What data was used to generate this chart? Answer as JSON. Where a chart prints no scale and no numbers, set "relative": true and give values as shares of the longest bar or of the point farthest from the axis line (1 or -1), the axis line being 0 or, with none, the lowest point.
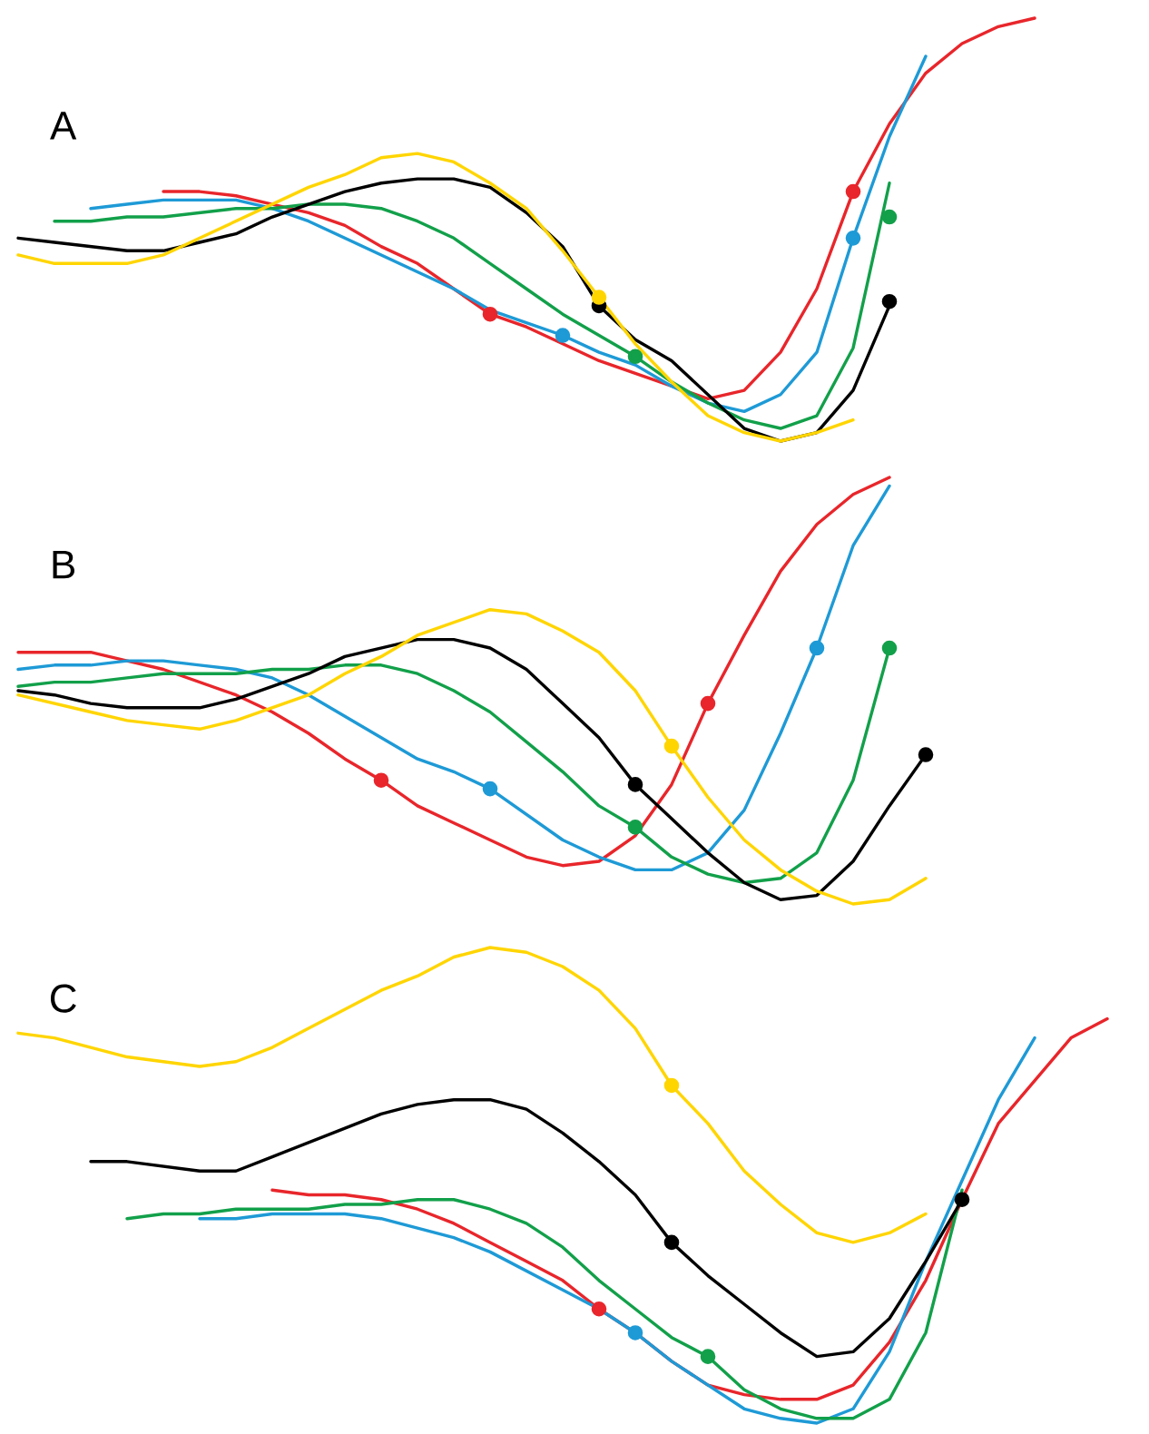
{
  "chart_data": [
    {
      "type": "line",
      "title": "A",
      "relative": true,
      "categories": [
        null,
        null,
        null,
        null,
        null,
        null,
        null,
        null,
        null,
        null,
        null,
        null,
        null,
        null,
        null,
        null,
        null,
        null,
        null,
        null,
        null,
        null,
        null,
        null,
        null,
        null,
        null,
        null,
        null,
        null,
        null,
        null
      ],
      "series": [
        {
          "color": "#e8262b",
          "values": [
            null,
            null,
            null,
            null,
            0.59,
            0.59,
            0.58,
            0.56,
            0.54,
            0.51,
            0.46,
            0.42,
            0.36,
            0.3,
            0.27,
            0.23,
            0.19,
            0.16,
            0.13,
            0.1,
            0.12,
            0.21,
            0.36,
            0.59,
            0.75,
            0.87,
            0.94,
            0.98,
            1.0,
            null,
            null,
            null
          ]
        },
        {
          "color": "#1e9ad6",
          "values": [
            null,
            null,
            0.55,
            0.56,
            0.57,
            0.57,
            0.57,
            0.55,
            0.52,
            0.48,
            0.44,
            0.4,
            0.36,
            0.31,
            0.28,
            0.25,
            0.21,
            0.18,
            0.13,
            0.09,
            0.07,
            0.11,
            0.21,
            0.48,
            0.72,
            0.91,
            null,
            null,
            null,
            null,
            null,
            null
          ]
        },
        {
          "color": "#12a04a",
          "values": [
            null,
            0.52,
            0.52,
            0.53,
            0.53,
            0.54,
            0.55,
            0.55,
            0.56,
            0.56,
            0.55,
            0.52,
            0.48,
            0.42,
            0.36,
            0.3,
            0.25,
            0.2,
            0.14,
            0.09,
            0.05,
            0.03,
            0.06,
            0.22,
            0.61,
            null,
            null,
            null,
            null,
            null,
            null,
            null
          ]
        },
        {
          "color": "#000000",
          "values": [
            0.48,
            0.47,
            0.46,
            0.45,
            0.45,
            0.47,
            0.49,
            0.53,
            0.56,
            0.59,
            0.61,
            0.62,
            0.62,
            0.6,
            0.54,
            0.46,
            0.32,
            0.24,
            0.19,
            0.11,
            0.03,
            0.0,
            0.02,
            0.12,
            0.32,
            null,
            null,
            null,
            null,
            null,
            null,
            null
          ]
        },
        {
          "color": "#ffd500",
          "values": [
            0.44,
            0.42,
            0.42,
            0.42,
            0.44,
            0.48,
            0.52,
            0.56,
            0.6,
            0.63,
            0.67,
            0.68,
            0.66,
            0.61,
            0.55,
            0.45,
            0.34,
            0.23,
            0.14,
            0.06,
            0.02,
            0.0,
            0.02,
            0.05,
            null,
            null,
            null,
            null,
            null,
            null,
            null,
            null
          ]
        },
        {
          "marker": "circle",
          "color": "#e8262b",
          "values": [
            null,
            null,
            null,
            null,
            null,
            null,
            null,
            null,
            null,
            null,
            null,
            null,
            null,
            0.3,
            null,
            null,
            null,
            null,
            null,
            null,
            null,
            null,
            null,
            null,
            null,
            null,
            null,
            null,
            null,
            null,
            null,
            null
          ]
        },
        {
          "marker": "circle",
          "color": "#e8262b",
          "values": [
            null,
            null,
            null,
            null,
            null,
            null,
            null,
            null,
            null,
            null,
            null,
            null,
            null,
            null,
            null,
            null,
            null,
            null,
            null,
            null,
            null,
            null,
            null,
            0.59,
            null,
            null,
            null,
            null,
            null,
            null,
            null,
            null
          ]
        },
        {
          "marker": "circle",
          "color": "#1e9ad6",
          "values": [
            null,
            null,
            null,
            null,
            null,
            null,
            null,
            null,
            null,
            null,
            null,
            null,
            null,
            null,
            null,
            0.25,
            null,
            null,
            null,
            null,
            null,
            null,
            null,
            null,
            null,
            null,
            null,
            null,
            null,
            null,
            null,
            null
          ]
        },
        {
          "marker": "circle",
          "color": "#1e9ad6",
          "values": [
            null,
            null,
            null,
            null,
            null,
            null,
            null,
            null,
            null,
            null,
            null,
            null,
            null,
            null,
            null,
            null,
            null,
            null,
            null,
            null,
            null,
            null,
            null,
            0.48,
            null,
            null,
            null,
            null,
            null,
            null,
            null,
            null
          ]
        },
        {
          "marker": "circle",
          "color": "#12a04a",
          "values": [
            null,
            null,
            null,
            null,
            null,
            null,
            null,
            null,
            null,
            null,
            null,
            null,
            null,
            null,
            null,
            null,
            null,
            0.2,
            null,
            null,
            null,
            null,
            null,
            null,
            null,
            null,
            null,
            null,
            null,
            null,
            null,
            null
          ]
        },
        {
          "marker": "circle",
          "color": "#12a04a",
          "values": [
            null,
            null,
            null,
            null,
            null,
            null,
            null,
            null,
            null,
            null,
            null,
            null,
            null,
            null,
            null,
            null,
            null,
            null,
            null,
            null,
            null,
            null,
            null,
            null,
            0.53,
            null,
            null,
            null,
            null,
            null,
            null,
            null
          ]
        },
        {
          "marker": "circle",
          "color": "#000000",
          "values": [
            null,
            null,
            null,
            null,
            null,
            null,
            null,
            null,
            null,
            null,
            null,
            null,
            null,
            null,
            null,
            null,
            0.32,
            null,
            null,
            null,
            null,
            null,
            null,
            null,
            null,
            null,
            null,
            null,
            null,
            null,
            null,
            null
          ]
        },
        {
          "marker": "circle",
          "color": "#000000",
          "values": [
            null,
            null,
            null,
            null,
            null,
            null,
            null,
            null,
            null,
            null,
            null,
            null,
            null,
            null,
            null,
            null,
            null,
            null,
            null,
            null,
            null,
            null,
            null,
            null,
            0.33,
            null,
            null,
            null,
            null,
            null,
            null,
            null
          ]
        },
        {
          "marker": "circle",
          "color": "#ffd500",
          "values": [
            null,
            null,
            null,
            null,
            null,
            null,
            null,
            null,
            null,
            null,
            null,
            null,
            null,
            null,
            null,
            null,
            0.34,
            null,
            null,
            null,
            null,
            null,
            null,
            null,
            null,
            null,
            null,
            null,
            null,
            null,
            null,
            null
          ]
        }
      ]
    },
    {
      "type": "line",
      "title": "B",
      "relative": true,
      "categories": [
        null,
        null,
        null,
        null,
        null,
        null,
        null,
        null,
        null,
        null,
        null,
        null,
        null,
        null,
        null,
        null,
        null,
        null,
        null,
        null,
        null,
        null,
        null,
        null,
        null,
        null,
        null,
        null,
        null,
        null,
        null,
        null
      ],
      "series": [
        {
          "color": "#e8262b",
          "values": [
            0.59,
            0.59,
            0.59,
            0.57,
            0.55,
            0.52,
            0.49,
            0.45,
            0.4,
            0.34,
            0.29,
            0.23,
            0.19,
            0.15,
            0.11,
            0.09,
            0.1,
            0.16,
            0.28,
            0.47,
            0.63,
            0.78,
            0.89,
            0.96,
            1.0,
            null,
            null,
            null,
            null,
            null,
            null,
            null
          ]
        },
        {
          "color": "#1e9ad6",
          "values": [
            0.55,
            0.56,
            0.56,
            0.57,
            0.57,
            0.56,
            0.55,
            0.53,
            0.49,
            0.44,
            0.39,
            0.34,
            0.31,
            0.27,
            0.21,
            0.15,
            0.11,
            0.08,
            0.08,
            0.12,
            0.22,
            0.4,
            0.6,
            0.84,
            0.98,
            null,
            null,
            null,
            null,
            null,
            null,
            null
          ]
        },
        {
          "color": "#12a04a",
          "values": [
            0.51,
            0.52,
            0.52,
            0.53,
            0.54,
            0.54,
            0.54,
            0.55,
            0.55,
            0.56,
            0.56,
            0.54,
            0.5,
            0.45,
            0.38,
            0.31,
            0.23,
            0.18,
            0.11,
            0.07,
            0.05,
            0.06,
            0.12,
            0.29,
            0.6,
            null,
            null,
            null,
            null,
            null,
            null,
            null
          ]
        },
        {
          "color": "#000000",
          "values": [
            0.5,
            0.49,
            0.47,
            0.46,
            0.46,
            0.46,
            0.48,
            0.51,
            0.54,
            0.58,
            0.6,
            0.62,
            0.62,
            0.6,
            0.55,
            0.47,
            0.39,
            0.28,
            0.2,
            0.12,
            0.05,
            0.01,
            0.02,
            0.1,
            0.23,
            0.35,
            null,
            null,
            null,
            null,
            null,
            null
          ]
        },
        {
          "color": "#ffd500",
          "values": [
            0.49,
            0.47,
            0.45,
            0.43,
            0.42,
            0.41,
            0.43,
            0.46,
            0.49,
            0.54,
            0.58,
            0.63,
            0.66,
            0.69,
            0.68,
            0.64,
            0.59,
            0.5,
            0.37,
            0.25,
            0.15,
            0.08,
            0.03,
            0.0,
            0.01,
            0.06,
            null,
            null,
            null,
            null,
            null,
            null
          ]
        },
        {
          "marker": "circle",
          "color": "#e8262b",
          "values": [
            null,
            null,
            null,
            null,
            null,
            null,
            null,
            null,
            null,
            null,
            0.29,
            null,
            null,
            null,
            null,
            null,
            null,
            null,
            null,
            null,
            null,
            null,
            null,
            null,
            null,
            null,
            null,
            null,
            null,
            null,
            null,
            null
          ]
        },
        {
          "marker": "circle",
          "color": "#e8262b",
          "values": [
            null,
            null,
            null,
            null,
            null,
            null,
            null,
            null,
            null,
            null,
            null,
            null,
            null,
            null,
            null,
            null,
            null,
            null,
            null,
            0.47,
            null,
            null,
            null,
            null,
            null,
            null,
            null,
            null,
            null,
            null,
            null,
            null
          ]
        },
        {
          "marker": "circle",
          "color": "#1e9ad6",
          "values": [
            null,
            null,
            null,
            null,
            null,
            null,
            null,
            null,
            null,
            null,
            null,
            null,
            null,
            0.27,
            null,
            null,
            null,
            null,
            null,
            null,
            null,
            null,
            null,
            null,
            null,
            null,
            null,
            null,
            null,
            null,
            null,
            null
          ]
        },
        {
          "marker": "circle",
          "color": "#1e9ad6",
          "values": [
            null,
            null,
            null,
            null,
            null,
            null,
            null,
            null,
            null,
            null,
            null,
            null,
            null,
            null,
            null,
            null,
            null,
            null,
            null,
            null,
            null,
            null,
            0.6,
            null,
            null,
            null,
            null,
            null,
            null,
            null,
            null,
            null
          ]
        },
        {
          "marker": "circle",
          "color": "#12a04a",
          "values": [
            null,
            null,
            null,
            null,
            null,
            null,
            null,
            null,
            null,
            null,
            null,
            null,
            null,
            null,
            null,
            null,
            null,
            0.18,
            null,
            null,
            null,
            null,
            null,
            null,
            null,
            null,
            null,
            null,
            null,
            null,
            null,
            null
          ]
        },
        {
          "marker": "circle",
          "color": "#12a04a",
          "values": [
            null,
            null,
            null,
            null,
            null,
            null,
            null,
            null,
            null,
            null,
            null,
            null,
            null,
            null,
            null,
            null,
            null,
            null,
            null,
            null,
            null,
            null,
            null,
            null,
            0.6,
            null,
            null,
            null,
            null,
            null,
            null,
            null
          ]
        },
        {
          "marker": "circle",
          "color": "#000000",
          "values": [
            null,
            null,
            null,
            null,
            null,
            null,
            null,
            null,
            null,
            null,
            null,
            null,
            null,
            null,
            null,
            null,
            null,
            0.28,
            null,
            null,
            null,
            null,
            null,
            null,
            null,
            null,
            null,
            null,
            null,
            null,
            null,
            null
          ]
        },
        {
          "marker": "circle",
          "color": "#000000",
          "values": [
            null,
            null,
            null,
            null,
            null,
            null,
            null,
            null,
            null,
            null,
            null,
            null,
            null,
            null,
            null,
            null,
            null,
            null,
            null,
            null,
            null,
            null,
            null,
            null,
            null,
            0.35,
            null,
            null,
            null,
            null,
            null,
            null
          ]
        },
        {
          "marker": "circle",
          "color": "#ffd500",
          "values": [
            null,
            null,
            null,
            null,
            null,
            null,
            null,
            null,
            null,
            null,
            null,
            null,
            null,
            null,
            null,
            null,
            null,
            null,
            0.37,
            null,
            null,
            null,
            null,
            null,
            null,
            null,
            null,
            null,
            null,
            null,
            null,
            null
          ]
        }
      ]
    },
    {
      "type": "line",
      "title": "C",
      "relative": true,
      "categories": [
        null,
        null,
        null,
        null,
        null,
        null,
        null,
        null,
        null,
        null,
        null,
        null,
        null,
        null,
        null,
        null,
        null,
        null,
        null,
        null,
        null,
        null,
        null,
        null,
        null,
        null,
        null,
        null,
        null,
        null,
        null,
        null
      ],
      "series": [
        {
          "color": "#e8262b",
          "values": [
            null,
            null,
            null,
            null,
            null,
            null,
            null,
            0.49,
            0.48,
            0.48,
            0.47,
            0.45,
            0.42,
            0.38,
            0.34,
            0.3,
            0.24,
            0.19,
            0.13,
            0.08,
            0.06,
            0.05,
            0.05,
            0.08,
            0.17,
            0.3,
            0.47,
            0.63,
            0.72,
            0.81,
            0.85,
            null
          ]
        },
        {
          "color": "#1e9ad6",
          "values": [
            null,
            null,
            null,
            null,
            null,
            0.43,
            0.43,
            0.44,
            0.44,
            0.44,
            0.43,
            0.41,
            0.39,
            0.36,
            0.32,
            0.28,
            0.24,
            0.19,
            0.13,
            0.08,
            0.03,
            0.01,
            0.0,
            0.03,
            0.15,
            0.34,
            0.51,
            0.68,
            0.81,
            null,
            null,
            null
          ]
        },
        {
          "color": "#12a04a",
          "values": [
            null,
            null,
            null,
            0.43,
            0.44,
            0.44,
            0.45,
            0.45,
            0.45,
            0.46,
            0.46,
            0.47,
            0.47,
            0.45,
            0.42,
            0.37,
            0.3,
            0.24,
            0.18,
            0.14,
            0.07,
            0.03,
            0.01,
            0.01,
            0.05,
            0.19,
            0.49,
            null,
            null,
            null,
            null,
            null
          ]
        },
        {
          "color": "#000000",
          "values": [
            null,
            null,
            0.55,
            0.55,
            0.54,
            0.53,
            0.53,
            0.56,
            0.59,
            0.62,
            0.65,
            0.67,
            0.68,
            0.68,
            0.66,
            0.61,
            0.55,
            0.48,
            0.38,
            0.31,
            0.25,
            0.19,
            0.14,
            0.15,
            0.22,
            0.34,
            0.47,
            null,
            null,
            null,
            null,
            null
          ]
        },
        {
          "color": "#ffd500",
          "values": [
            0.82,
            0.81,
            0.79,
            0.77,
            0.76,
            0.75,
            0.76,
            0.79,
            0.83,
            0.87,
            0.91,
            0.94,
            0.98,
            1.0,
            0.99,
            0.96,
            0.91,
            0.83,
            0.71,
            0.63,
            0.53,
            0.46,
            0.4,
            0.38,
            0.4,
            0.44,
            null,
            null,
            null,
            null,
            null,
            null
          ]
        },
        {
          "marker": "circle",
          "color": "#e8262b",
          "values": [
            null,
            null,
            null,
            null,
            null,
            null,
            null,
            null,
            null,
            null,
            null,
            null,
            null,
            null,
            null,
            null,
            0.24,
            null,
            null,
            null,
            null,
            null,
            null,
            null,
            null,
            null,
            null,
            null,
            null,
            null,
            null,
            null
          ]
        },
        {
          "marker": "circle",
          "color": "#1e9ad6",
          "values": [
            null,
            null,
            null,
            null,
            null,
            null,
            null,
            null,
            null,
            null,
            null,
            null,
            null,
            null,
            null,
            null,
            null,
            0.19,
            null,
            null,
            null,
            null,
            null,
            null,
            null,
            null,
            null,
            null,
            null,
            null,
            null,
            null
          ]
        },
        {
          "marker": "circle",
          "color": "#12a04a",
          "values": [
            null,
            null,
            null,
            null,
            null,
            null,
            null,
            null,
            null,
            null,
            null,
            null,
            null,
            null,
            null,
            null,
            null,
            null,
            null,
            0.14,
            null,
            null,
            null,
            null,
            null,
            null,
            null,
            null,
            null,
            null,
            null,
            null
          ]
        },
        {
          "marker": "circle",
          "color": "#000000",
          "values": [
            null,
            null,
            null,
            null,
            null,
            null,
            null,
            null,
            null,
            null,
            null,
            null,
            null,
            null,
            null,
            null,
            null,
            null,
            0.38,
            null,
            null,
            null,
            null,
            null,
            null,
            null,
            null,
            null,
            null,
            null,
            null,
            null
          ]
        },
        {
          "marker": "circle",
          "color": "#000000",
          "values": [
            null,
            null,
            null,
            null,
            null,
            null,
            null,
            null,
            null,
            null,
            null,
            null,
            null,
            null,
            null,
            null,
            null,
            null,
            null,
            null,
            null,
            null,
            null,
            null,
            null,
            null,
            0.47,
            null,
            null,
            null,
            null,
            null
          ]
        },
        {
          "marker": "circle",
          "color": "#ffd500",
          "values": [
            null,
            null,
            null,
            null,
            null,
            null,
            null,
            null,
            null,
            null,
            null,
            null,
            null,
            null,
            null,
            null,
            null,
            null,
            0.71,
            null,
            null,
            null,
            null,
            null,
            null,
            null,
            null,
            null,
            null,
            null,
            null,
            null
          ]
        }
      ]
    }
  ]
}
